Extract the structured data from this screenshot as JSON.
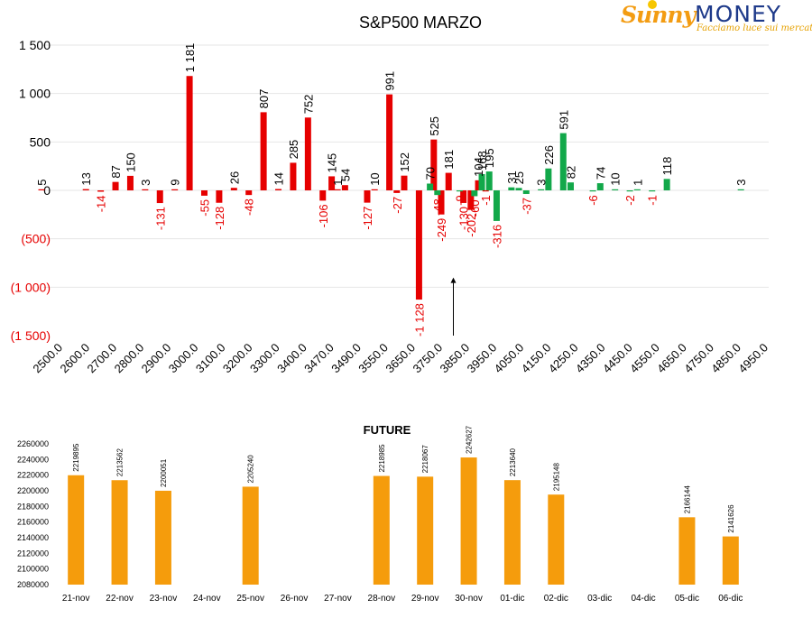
{
  "logo": {
    "brand_a": "Sunny",
    "brand_b": "MONEY",
    "tagline": "Facciamo luce sui mercati"
  },
  "colors": {
    "put": "#e60000",
    "call": "#12a84a",
    "future": "#f59c0c",
    "neg_tick": "#e60000",
    "text": "#000000",
    "grid": "#e6e6e6"
  },
  "chart_data": [
    {
      "type": "bar",
      "title": "S&P500 MARZO",
      "ylim": [
        -1500,
        1500
      ],
      "yticks": [
        {
          "v": 1500,
          "label": "1 500"
        },
        {
          "v": 1000,
          "label": "1 000"
        },
        {
          "v": 500,
          "label": "500"
        },
        {
          "v": 0,
          "label": "0"
        },
        {
          "v": -500,
          "label": "(500)"
        },
        {
          "v": -1000,
          "label": "(1 000)"
        },
        {
          "v": -1500,
          "label": "(1 500)"
        }
      ],
      "grid": true,
      "xtick_labels": [
        "2500.0",
        "2600.0",
        "2700.0",
        "2800.0",
        "2900.0",
        "3000.0",
        "3100.0",
        "3200.0",
        "3300.0",
        "3400.0",
        "3470.0",
        "3490.0",
        "3550.0",
        "3650.0",
        "3750.0",
        "3850.0",
        "3950.0",
        "4050.0",
        "4150.0",
        "4250.0",
        "4350.0",
        "4450.0",
        "4550.0",
        "4650.0",
        "4750.0",
        "4850.0",
        "4950.0"
      ],
      "series": [
        {
          "color_key": "put",
          "points": [
            {
              "s": 2500,
              "v": 5
            },
            {
              "s": 2650,
              "v": 13
            },
            {
              "s": 2700,
              "v": -14
            },
            {
              "s": 2750,
              "v": 87
            },
            {
              "s": 2800,
              "v": 150
            },
            {
              "s": 2850,
              "v": 3
            },
            {
              "s": 2900,
              "v": -131
            },
            {
              "s": 2950,
              "v": 9
            },
            {
              "s": 3000,
              "v": 1181
            },
            {
              "s": 3050,
              "v": -55
            },
            {
              "s": 3100,
              "v": -128
            },
            {
              "s": 3150,
              "v": 26
            },
            {
              "s": 3200,
              "v": -48
            },
            {
              "s": 3250,
              "v": 807
            },
            {
              "s": 3300,
              "v": 14
            },
            {
              "s": 3350,
              "v": 285
            },
            {
              "s": 3400,
              "v": 752
            },
            {
              "s": 3450,
              "v": -106
            },
            {
              "s": 3480,
              "v": 145
            },
            {
              "s": 3500,
              "v": 1
            },
            {
              "s": 3525,
              "v": 54
            },
            {
              "s": 3600,
              "v": -127
            },
            {
              "s": 3625,
              "v": 10
            },
            {
              "s": 3675,
              "v": 991
            },
            {
              "s": 3700,
              "v": -27
            },
            {
              "s": 3725,
              "v": 152
            },
            {
              "s": 3775,
              "v": -1128
            },
            {
              "s": 3825,
              "v": 525
            },
            {
              "s": 3850,
              "v": -249
            },
            {
              "s": 3875,
              "v": 181
            },
            {
              "s": 3925,
              "v": -130
            },
            {
              "s": 3950,
              "v": -202
            },
            {
              "s": 3975,
              "v": 104
            },
            {
              "s": 4000,
              "v": -1
            }
          ]
        },
        {
          "color_key": "call",
          "points": [
            {
              "s": 3800,
              "v": 70
            },
            {
              "s": 3825,
              "v": -48
            },
            {
              "s": 3900,
              "v": -9
            },
            {
              "s": 3950,
              "v": -60
            },
            {
              "s": 3975,
              "v": 168
            },
            {
              "s": 4000,
              "v": 195
            },
            {
              "s": 4025,
              "v": -316
            },
            {
              "s": 4075,
              "v": 31
            },
            {
              "s": 4100,
              "v": 25
            },
            {
              "s": 4125,
              "v": -37
            },
            {
              "s": 4175,
              "v": 3
            },
            {
              "s": 4200,
              "v": 226
            },
            {
              "s": 4250,
              "v": 591
            },
            {
              "s": 4275,
              "v": 82
            },
            {
              "s": 4350,
              "v": -6
            },
            {
              "s": 4375,
              "v": 74
            },
            {
              "s": 4425,
              "v": 10
            },
            {
              "s": 4475,
              "v": -2
            },
            {
              "s": 4500,
              "v": 1
            },
            {
              "s": 4550,
              "v": -1
            },
            {
              "s": 4600,
              "v": 118
            },
            {
              "s": 4850,
              "v": 3
            }
          ]
        }
      ],
      "annotations": [
        {
          "type": "arrow",
          "at_strike": 3885,
          "from_value": -1500,
          "to_value": -900
        }
      ]
    },
    {
      "type": "bar",
      "title": "FUTURE",
      "ylim": [
        2080000,
        2260000
      ],
      "yticks": [
        2080000,
        2100000,
        2120000,
        2140000,
        2160000,
        2180000,
        2200000,
        2220000,
        2240000,
        2260000
      ],
      "categories": [
        "21-nov",
        "22-nov",
        "23-nov",
        "24-nov",
        "25-nov",
        "26-nov",
        "27-nov",
        "28-nov",
        "29-nov",
        "30-nov",
        "01-dic",
        "02-dic",
        "03-dic",
        "04-dic",
        "05-dic",
        "06-dic"
      ],
      "values": [
        2219895,
        2213562,
        2200051,
        null,
        2205240,
        null,
        null,
        2218985,
        2218067,
        2242627,
        2213640,
        2195148,
        null,
        null,
        2166144,
        2141626
      ],
      "grid": false
    }
  ]
}
